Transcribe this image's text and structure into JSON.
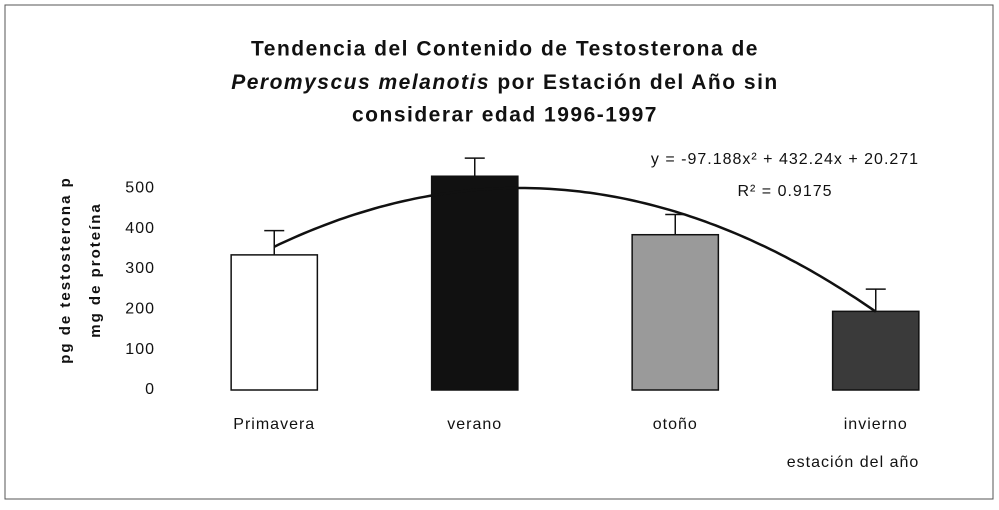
{
  "chart_data": {
    "type": "bar",
    "title": [
      "Tendencia del Contenido de Testosterona de",
      "Peromyscus melanotis",
      "por Estación del Año sin",
      "considerar edad 1996-1997"
    ],
    "ylabel": [
      "pg de testosterona p",
      "mg de proteína"
    ],
    "xlabel": "estación del año",
    "categories": [
      "Primavera",
      "verano",
      "otoño",
      "invierno"
    ],
    "values": [
      335,
      530,
      385,
      195
    ],
    "errors": [
      60,
      45,
      50,
      55
    ],
    "colors": [
      "#ffffff",
      "#111111",
      "#9a9a9a",
      "#3a3a3a"
    ],
    "ylim": [
      0,
      600
    ],
    "yticks": [
      0,
      100,
      200,
      300,
      400,
      500
    ],
    "grid": false,
    "trendline": {
      "coefficients": [
        -97.188,
        432.24,
        20.271
      ],
      "equation": "y = -97.188x² + 432.24x + 20.271",
      "r2": "R² = 0.9175"
    }
  }
}
